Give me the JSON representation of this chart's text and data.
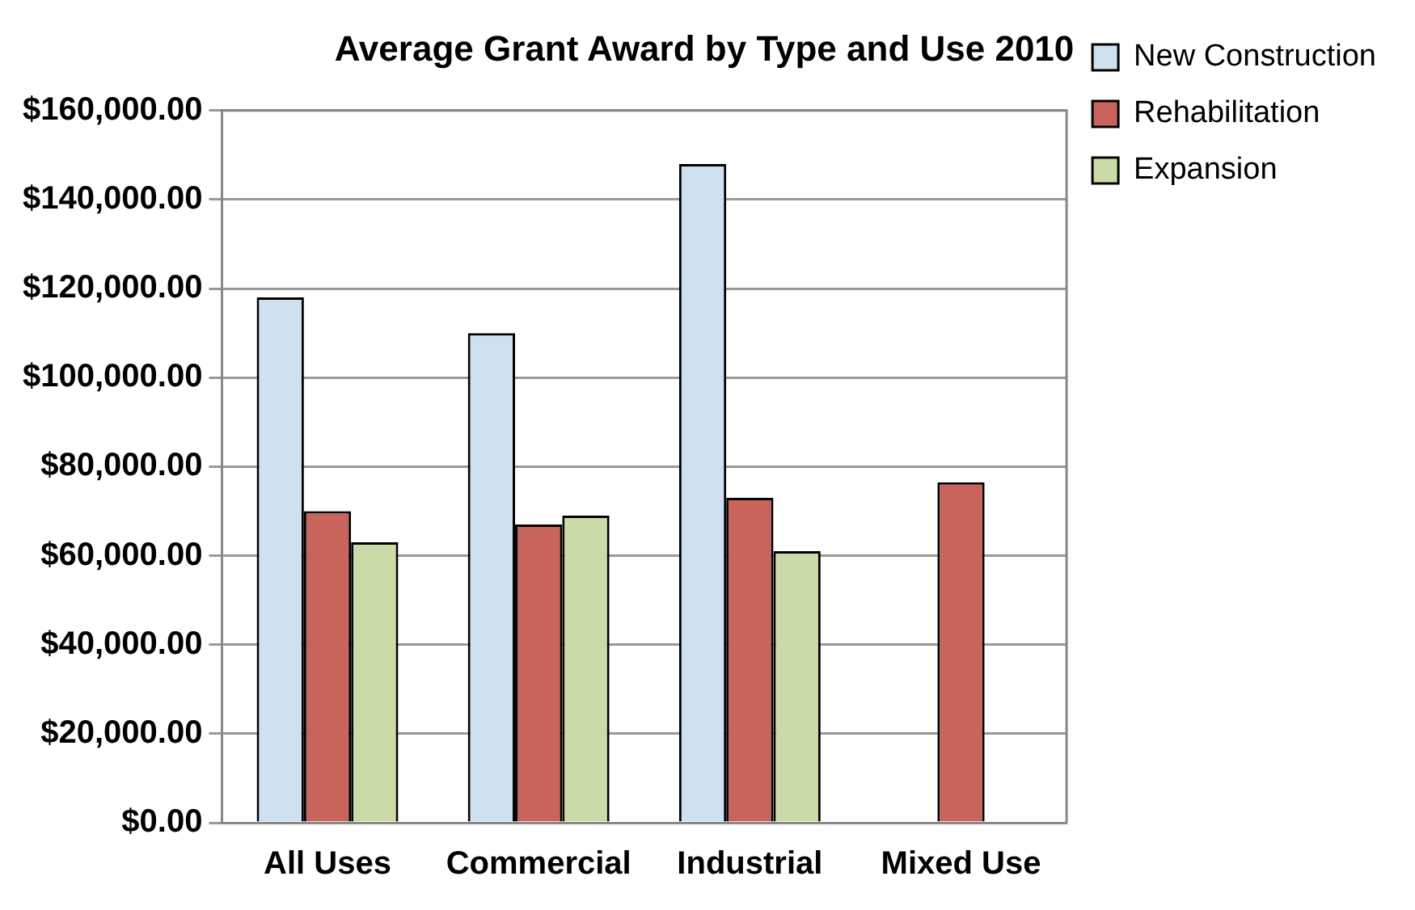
{
  "chart_data": {
    "type": "bar",
    "title": "Average Grant Award by Type and Use 2010",
    "categories": [
      "All Uses",
      "Commercial",
      "Industrial",
      "Mixed Use"
    ],
    "series": [
      {
        "name": "New Construction",
        "color": "#cfe0f0",
        "values": [
          118000,
          110000,
          148000,
          null
        ]
      },
      {
        "name": "Rehabilitation",
        "color": "#c8645c",
        "values": [
          70000,
          67000,
          73000,
          76500
        ]
      },
      {
        "name": "Expansion",
        "color": "#cbdba8",
        "values": [
          63000,
          69000,
          61000,
          null
        ]
      }
    ],
    "ylim": [
      0,
      160000
    ],
    "yticks": [
      {
        "value": 0,
        "label": "$0.00"
      },
      {
        "value": 20000,
        "label": "$20,000.00"
      },
      {
        "value": 40000,
        "label": "$40,000.00"
      },
      {
        "value": 60000,
        "label": "$60,000.00"
      },
      {
        "value": 80000,
        "label": "$80,000.00"
      },
      {
        "value": 100000,
        "label": "$100,000.00"
      },
      {
        "value": 120000,
        "label": "$120,000.00"
      },
      {
        "value": 140000,
        "label": "$140,000.00"
      },
      {
        "value": 160000,
        "label": "$160,000.00"
      }
    ],
    "grid": "y",
    "legend": "top right"
  }
}
